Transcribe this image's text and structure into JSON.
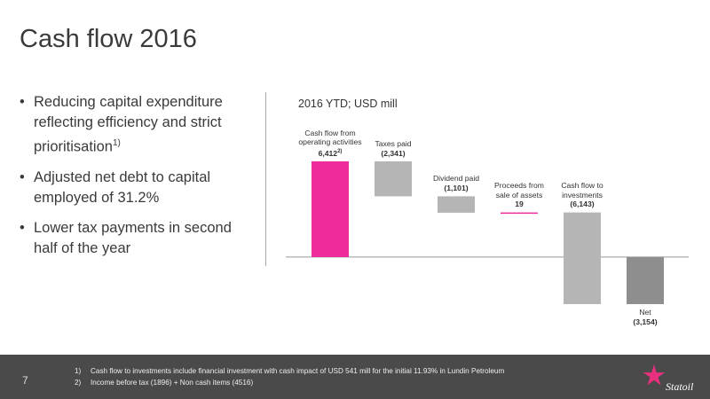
{
  "header": {
    "title": "Cash flow 2016"
  },
  "bullets": [
    {
      "text": "Reducing capital expenditure reflecting efficiency and strict prioritisation",
      "note": "1)"
    },
    {
      "text": "Adjusted net debt to capital employed of 31.2%"
    },
    {
      "text": "Lower tax payments in second half of the year"
    }
  ],
  "chart_data": {
    "type": "waterfall",
    "subtitle": "2016 YTD; USD mill",
    "categories": [
      "Cash flow from operating activities",
      "Taxes paid",
      "Dividend paid",
      "Proceeds from sale of assets",
      "Cash flow to investments",
      "Net"
    ],
    "values": [
      6412,
      -2341,
      -1101,
      19,
      -6143,
      -3154
    ],
    "value_labels": [
      "6,412",
      "(2,341)",
      "(1,101)",
      "19",
      "(6,143)",
      "(3,154)"
    ],
    "value_label_notes": [
      "2)",
      null,
      null,
      null,
      null,
      null
    ],
    "is_total": [
      false,
      false,
      false,
      false,
      false,
      true
    ],
    "colors": [
      "#ee2a9c",
      "#b5b5b5",
      "#b5b5b5",
      "#ee2a9c",
      "#b5b5b5",
      "#8e8e8e"
    ]
  },
  "footer": {
    "page": "7",
    "notes": [
      {
        "mark": "1)",
        "text": "Cash flow to investments include financial investment with cash impact of USD 541 mill for the initial 11.93% in Lundin Petroleum"
      },
      {
        "mark": "2)",
        "text": "Income before tax (1896) + Non cash items (4516)"
      }
    ],
    "logo": "Statoil"
  }
}
